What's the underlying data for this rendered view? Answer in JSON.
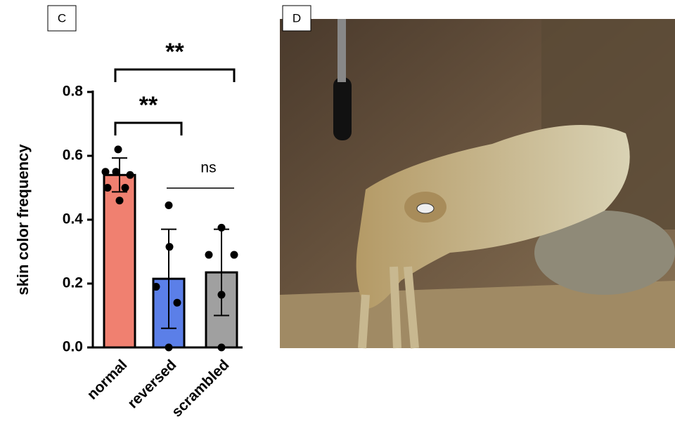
{
  "panel_labels": [
    "C",
    "D"
  ],
  "chart_data": {
    "type": "bar",
    "y_label": "skin color frequency",
    "categories": [
      "normal",
      "reversed",
      "scrambled"
    ],
    "values": [
      0.54,
      0.215,
      0.235
    ],
    "errors": [
      0.053,
      0.155,
      0.135
    ],
    "colors": [
      "#f08070",
      "#5b7fe8",
      "#a0a0a0"
    ],
    "points": [
      [
        0.62,
        0.55,
        0.55,
        0.54,
        0.5,
        0.5,
        0.46
      ],
      [
        0.445,
        0.315,
        0.19,
        0.14,
        0.0
      ],
      [
        0.375,
        0.29,
        0.29,
        0.165,
        0.0
      ]
    ],
    "annotations": [
      "**",
      "**",
      "ns"
    ],
    "ylim": [
      0,
      0.8
    ],
    "yticks": [
      {
        "value": 0,
        "label": "0.0"
      },
      {
        "value": 0.2,
        "label": "0.2"
      },
      {
        "value": 0.4,
        "label": "0.4"
      },
      {
        "value": 0.6,
        "label": "0.6"
      },
      {
        "value": 0.8,
        "label": "0.8"
      }
    ]
  }
}
